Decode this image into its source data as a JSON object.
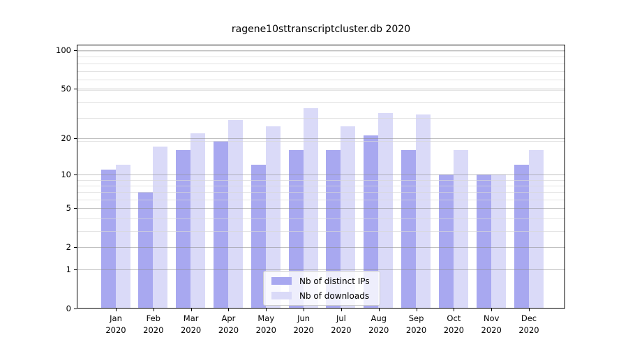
{
  "title": "ragene10sttranscriptcluster.db 2020",
  "chart_data": {
    "type": "bar",
    "title": "ragene10sttranscriptcluster.db 2020",
    "categories": [
      "Jan",
      "Feb",
      "Mar",
      "Apr",
      "May",
      "Jun",
      "Jul",
      "Aug",
      "Sep",
      "Oct",
      "Nov",
      "Dec"
    ],
    "year_label": "2020",
    "series": [
      {
        "name": "Nb of distinct IPs",
        "key": "distinct-ips",
        "color": "#a8a8f0",
        "values": [
          11,
          7,
          16,
          19,
          12,
          16,
          16,
          21,
          16,
          10,
          10,
          12
        ]
      },
      {
        "name": "Nb of downloads",
        "key": "downloads",
        "color": "#dadaf8",
        "values": [
          12,
          17,
          22,
          28,
          25,
          35,
          25,
          32,
          31,
          16,
          10,
          16
        ]
      }
    ],
    "yscale": "log10(1+y)",
    "yticks": [
      0,
      1,
      2,
      5,
      10,
      20,
      50,
      100
    ],
    "minor_gridlines_1plus": [
      4,
      5,
      7,
      8,
      9,
      10,
      20,
      30,
      40,
      50,
      60,
      70,
      80,
      90,
      100
    ],
    "ylim": [
      0,
      111
    ],
    "xlabel": "",
    "ylabel": "",
    "grid": true,
    "legend_position": "lower center"
  }
}
